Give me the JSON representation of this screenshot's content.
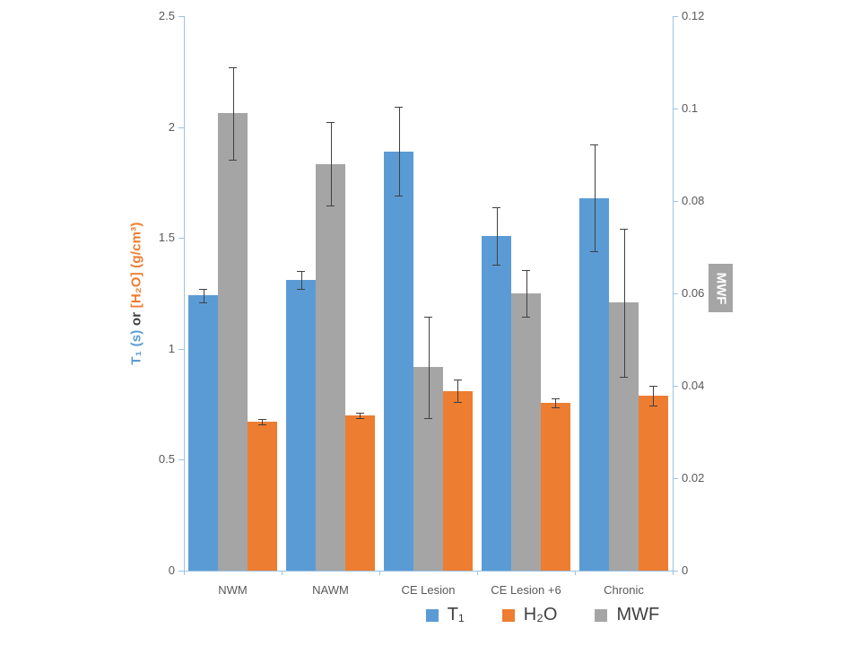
{
  "chart_data": {
    "type": "bar",
    "categories": [
      "NWM",
      "NAWM",
      "CE Lesion",
      "CE Lesion +6",
      "Chronic"
    ],
    "series": [
      {
        "name": "T₁",
        "axis": "left",
        "color": "#5B9BD5",
        "values": [
          1.24,
          1.31,
          1.89,
          1.51,
          1.68
        ],
        "errors": [
          0.03,
          0.04,
          0.2,
          0.13,
          0.24
        ]
      },
      {
        "name": "MWF",
        "axis": "right",
        "color": "#A5A5A5",
        "values": [
          0.099,
          0.088,
          0.044,
          0.06,
          0.058
        ],
        "errors": [
          0.01,
          0.009,
          0.011,
          0.005,
          0.016
        ]
      },
      {
        "name": "H₂O",
        "axis": "left",
        "color": "#ED7D31",
        "values": [
          0.67,
          0.7,
          0.81,
          0.755,
          0.79
        ],
        "errors": [
          0.012,
          0.012,
          0.05,
          0.02,
          0.045
        ]
      }
    ],
    "left_axis": {
      "min": 0,
      "max": 2.5,
      "ticks": [
        0,
        0.5,
        1,
        1.5,
        2,
        2.5
      ],
      "tick_labels": [
        "0",
        "0.5",
        "1",
        "1.5",
        "2",
        "2.5"
      ],
      "title_parts": [
        {
          "text": "T₁ (s)",
          "color": "#5B9BD5"
        },
        {
          "text": " or ",
          "color": "#404040"
        },
        {
          "text": "[H₂O] (g/cm³)",
          "color": "#ED7D31"
        }
      ]
    },
    "right_axis": {
      "min": 0,
      "max": 0.12,
      "ticks": [
        0,
        0.02,
        0.04,
        0.06,
        0.08,
        0.1,
        0.12
      ],
      "tick_labels": [
        "0",
        "0.02",
        "0.04",
        "0.06",
        "0.08",
        "0.1",
        "0.12"
      ],
      "title": "MWF"
    },
    "legend": [
      {
        "label": "T₁",
        "color": "#5B9BD5"
      },
      {
        "label": "H₂O",
        "color": "#ED7D31"
      },
      {
        "label": "MWF",
        "color": "#A5A5A5"
      }
    ],
    "grid": false,
    "legend_position": "bottom",
    "axis_color": "#9CC2E5",
    "error_bar_color": "#404040",
    "text_color": "#595959"
  }
}
